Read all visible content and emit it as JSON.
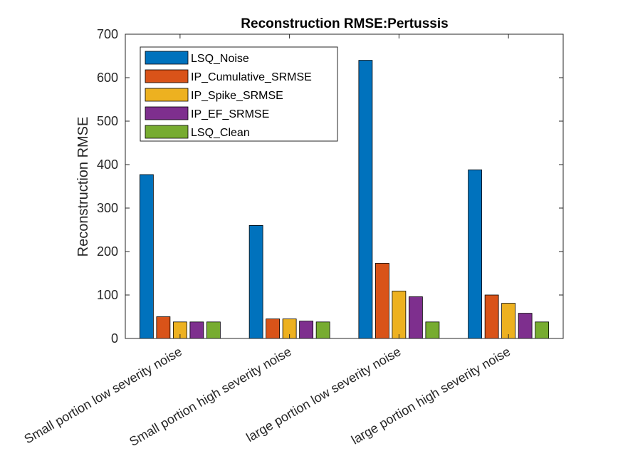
{
  "chart_data": {
    "type": "bar",
    "title": "Reconstruction RMSE:Pertussis",
    "xlabel": "",
    "ylabel": "Reconstruction RMSE",
    "ylim": [
      0,
      700
    ],
    "yticks": [
      0,
      100,
      200,
      300,
      400,
      500,
      600,
      700
    ],
    "categories": [
      "Small portion low severity noise",
      "Small portion high severity noise",
      "large portion low severity noise",
      "large portion high severity noise"
    ],
    "series": [
      {
        "name": "LSQ_Noise",
        "color": "#0072BD",
        "values": [
          377,
          260,
          640,
          388
        ]
      },
      {
        "name": "IP_Cumulative_SRMSE",
        "color": "#D95319",
        "values": [
          50,
          45,
          173,
          100
        ]
      },
      {
        "name": "IP_Spike_SRMSE",
        "color": "#EDB120",
        "values": [
          38,
          45,
          109,
          81
        ]
      },
      {
        "name": "IP_EF_SRMSE",
        "color": "#7E2F8E",
        "values": [
          38,
          40,
          96,
          58
        ]
      },
      {
        "name": "LSQ_Clean",
        "color": "#77AC30",
        "values": [
          38,
          38,
          38,
          38
        ]
      }
    ],
    "legend_position": "top-left",
    "grid": false
  }
}
